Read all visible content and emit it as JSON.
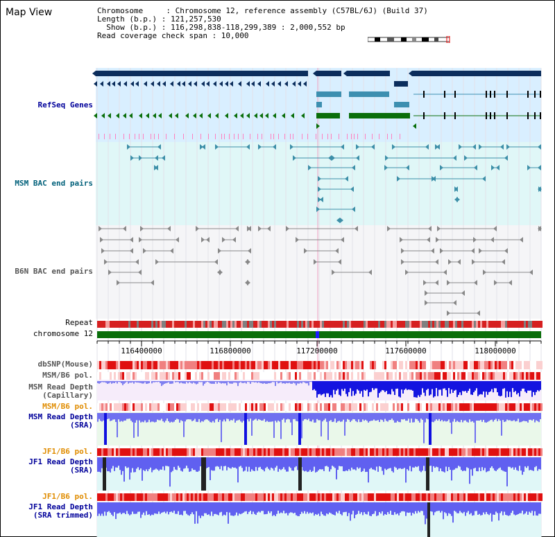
{
  "page": {
    "title": "Map View"
  },
  "info": {
    "line1": "Chromosome     : Chromosome 12, reference assembly (C57BL/6J) (Build 37)",
    "line2": "Length (b.p.) : 121,257,530",
    "line3": "  Show (b.p.) : 116,298,838-118,299,389 : 2,000,552 bp",
    "line4": "Read coverage check span : 10,000"
  },
  "tracks": {
    "refseq": "RefSeq Genes",
    "msm_bac": "MSM BAC end pairs",
    "b6n_bac": "B6N BAC end pairs",
    "repeat": "Repeat",
    "chromosome": "chromosome 12",
    "dbsnp": "dbSNP(Mouse)",
    "msm_b6_pol_1": "MSM/B6 pol.",
    "msm_depth_cap": "MSM Read Depth\n(Capillary)",
    "msm_b6_pol_2": "MSM/B6 pol.",
    "msm_depth_sra": "MSM Read Depth\n(SRA)",
    "jf1_b6_pol_1": "JF1/B6 pol.",
    "jf1_depth_sra": "JF1 Read Depth\n(SRA)",
    "jf1_b6_pol_2": "JF1/B6 pol.",
    "jf1_depth_trim": "JF1 Read Depth\n(SRA trimmed)"
  },
  "axis": {
    "ticks": [
      "116400000",
      "116800000",
      "117200000",
      "117600000",
      "118000000"
    ]
  },
  "colors": {
    "refseq_bg": "#d9efff",
    "bac_bg": "#e0f7f7",
    "b6n_bg": "#f4f4f6",
    "navy": "#0b2d5c",
    "teal": "#3d8fb0",
    "green": "#0a6e0a",
    "label_blue": "#00009a",
    "label_teal": "#00607a",
    "label_orange": "#e08c00"
  }
}
